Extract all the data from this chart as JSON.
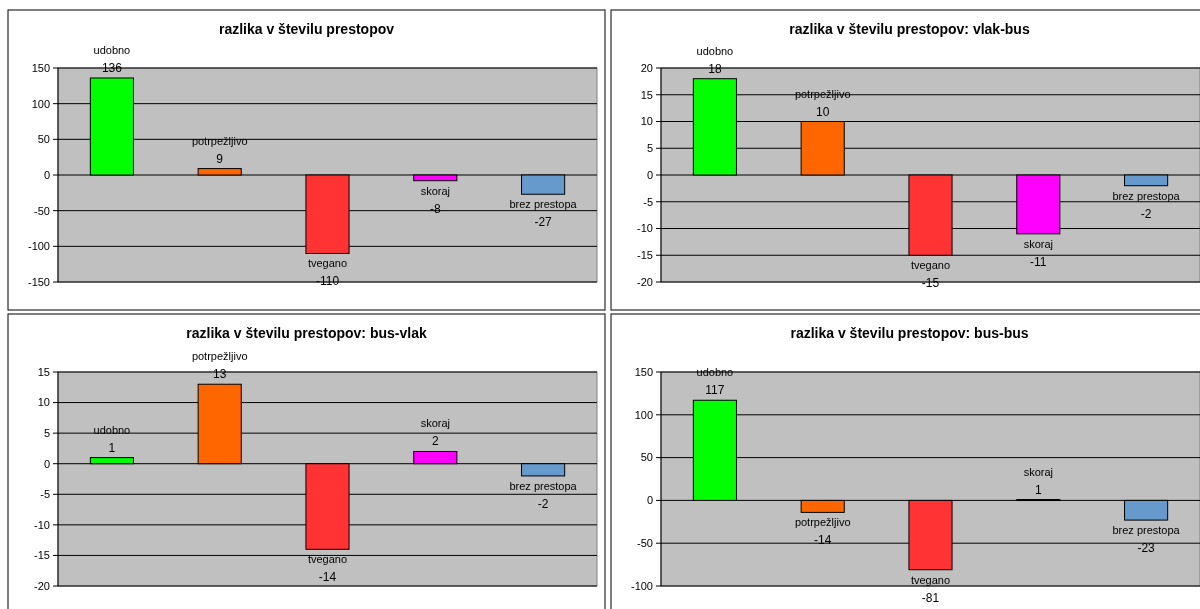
{
  "chart_data": [
    {
      "type": "bar",
      "title": "razlika v številu prestopov",
      "categories": [
        "udobno",
        "potrpežljivo",
        "tvegano",
        "skoraj",
        "brez prestopa"
      ],
      "values": [
        136,
        9,
        -110,
        -8,
        -27
      ],
      "colors": [
        "#00ff00",
        "#ff6600",
        "#ff3333",
        "#ff00ff",
        "#6699cc"
      ],
      "ylim": [
        -150,
        150
      ],
      "yticks": [
        -150,
        -100,
        -50,
        0,
        50,
        100,
        150
      ],
      "grid": "y",
      "data_labels": true,
      "tick_labels": "y"
    },
    {
      "type": "bar",
      "title": "razlika v številu prestopov: vlak-bus",
      "categories": [
        "udobno",
        "potrpežljivo",
        "tvegano",
        "skoraj",
        "brez prestopa"
      ],
      "values": [
        18,
        10,
        -15,
        -11,
        -2
      ],
      "colors": [
        "#00ff00",
        "#ff6600",
        "#ff3333",
        "#ff00ff",
        "#6699cc"
      ],
      "ylim": [
        -20,
        20
      ],
      "yticks": [
        -20,
        -15,
        -10,
        -5,
        0,
        5,
        10,
        15,
        20
      ],
      "grid": "y",
      "data_labels": true,
      "tick_labels": "y"
    },
    {
      "type": "bar",
      "title": "razlika v številu prestopov: bus-vlak",
      "categories": [
        "udobno",
        "potrpežljivo",
        "tvegano",
        "skoraj",
        "brez prestopa"
      ],
      "values": [
        1,
        13,
        -14,
        2,
        -2
      ],
      "colors": [
        "#00ff00",
        "#ff6600",
        "#ff3333",
        "#ff00ff",
        "#6699cc"
      ],
      "ylim": [
        -20,
        15
      ],
      "yticks": [
        -20,
        -15,
        -10,
        -5,
        0,
        5,
        10,
        15
      ],
      "grid": "y",
      "data_labels": true,
      "tick_labels": "y"
    },
    {
      "type": "bar",
      "title": "razlika v številu prestopov: bus-bus",
      "categories": [
        "udobno",
        "potrpežljivo",
        "tvegano",
        "skoraj",
        "brez prestopa"
      ],
      "values": [
        117,
        -14,
        -81,
        1,
        -23
      ],
      "colors": [
        "#00ff00",
        "#ff6600",
        "#ff3333",
        "#ff00ff",
        "#6699cc"
      ],
      "ylim": [
        -100,
        150
      ],
      "yticks": [
        -100,
        -50,
        0,
        50,
        100,
        150
      ],
      "grid": "y",
      "data_labels": true,
      "tick_labels": "y"
    }
  ]
}
